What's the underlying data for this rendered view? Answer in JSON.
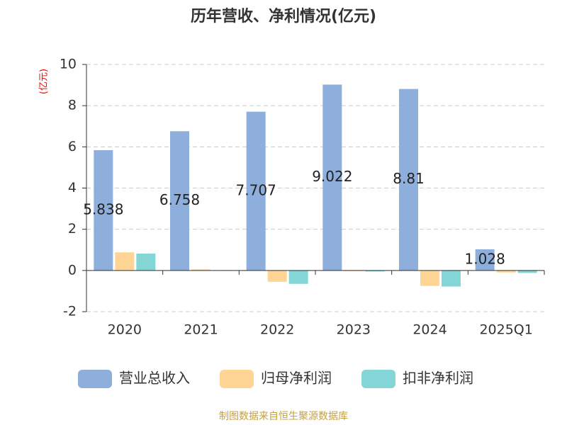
{
  "chart_data": {
    "type": "bar",
    "title": "历年营收、净利情况(亿元)",
    "y_label": "(亿元)",
    "categories": [
      "2020",
      "2021",
      "2022",
      "2023",
      "2024",
      "2025Q1"
    ],
    "series": [
      {
        "name": "营业总收入",
        "color": "#8eaedb",
        "values": [
          5.838,
          6.758,
          7.707,
          9.022,
          8.81,
          1.028
        ],
        "show_labels": true
      },
      {
        "name": "归母净利润",
        "color": "#ffd595",
        "values": [
          0.88,
          0.05,
          -0.55,
          -0.03,
          -0.75,
          -0.1
        ]
      },
      {
        "name": "扣非净利润",
        "color": "#84d6d6",
        "values": [
          0.82,
          -0.02,
          -0.65,
          -0.05,
          -0.78,
          -0.12
        ]
      }
    ],
    "ylim": [
      -2,
      10
    ],
    "yticks": [
      -2,
      0,
      2,
      4,
      6,
      8,
      10
    ],
    "grid": true,
    "source": "制图数据来自恒生聚源数据库"
  }
}
